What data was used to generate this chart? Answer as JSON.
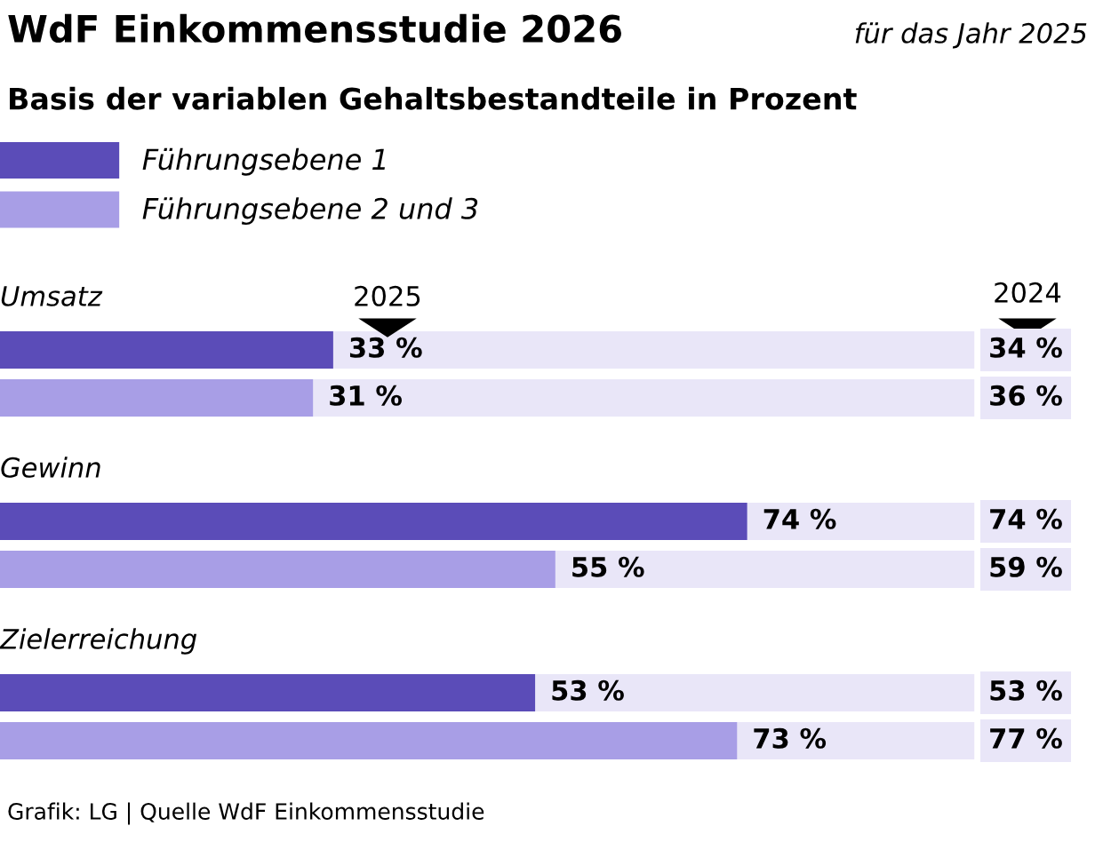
{
  "chart_data": {
    "type": "bar",
    "orientation": "horizontal",
    "title": "WdF Einkommensstudie 2026",
    "subtitle": "Basis der variablen Gehaltsbestandteile in Prozent",
    "categories": [
      "Umsatz",
      "Gewinn",
      "Zielerreichung"
    ],
    "series": [
      {
        "name": "Führungsebene 1",
        "color": "#5b4cb8",
        "values": [
          33,
          74,
          53
        ],
        "value_labels": [
          "33 %",
          "74 %",
          "53 %"
        ]
      },
      {
        "name": "Führungsebene 2 und 3",
        "color": "#a89ee6",
        "values": [
          31,
          55,
          73
        ],
        "value_labels": [
          "31 %",
          "55 %",
          "73 %"
        ]
      }
    ],
    "tick_labels": false,
    "legend": "top left",
    "annotations": [
      "für das Jahr 2025",
      "2025",
      "2024",
      "34 %",
      "36 %",
      "74 %",
      "59 %",
      "53 %",
      "77 %",
      "Grafik: LG | Quelle WdF Einkommensstudie"
    ]
  }
}
